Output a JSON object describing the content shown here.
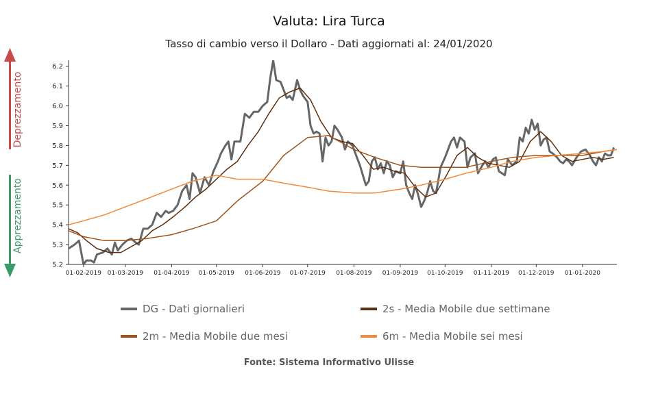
{
  "chart_data": {
    "type": "line",
    "title": "Valuta: Lira Turca",
    "subtitle": "Tasso di cambio verso il Dollaro - Dati aggiornati al: 24/01/2020",
    "source": "Fonte: Sistema Informativo Ulisse",
    "side_labels": {
      "up": "Deprezzamento",
      "down": "Apprezzamento"
    },
    "x_start": "2019-01-22",
    "x_end": "2020-01-24",
    "x_ticks": [
      "01-02-2019",
      "01-03-2019",
      "01-04-2019",
      "01-05-2019",
      "01-06-2019",
      "01-07-2019",
      "01-08-2019",
      "01-09-2019",
      "01-10-2019",
      "01-11-2019",
      "01-12-2019",
      "01-01-2020"
    ],
    "x_tick_dates": [
      "2019-02-01",
      "2019-03-01",
      "2019-04-01",
      "2019-05-01",
      "2019-06-01",
      "2019-07-01",
      "2019-08-01",
      "2019-09-01",
      "2019-10-01",
      "2019-11-01",
      "2019-12-01",
      "2020-01-01"
    ],
    "ylim": [
      5.2,
      6.23
    ],
    "y_ticks": [
      5.2,
      5.3,
      5.4,
      5.5,
      5.6,
      5.7,
      5.8,
      5.9,
      6.0,
      6.1,
      6.2
    ],
    "legend_position": "bottom",
    "series": [
      {
        "key": "dg",
        "name": "DG - Dati giornalieri",
        "color": "#666666",
        "width": 3,
        "points": [
          [
            "2019-01-22",
            5.28
          ],
          [
            "2019-01-26",
            5.3
          ],
          [
            "2019-01-29",
            5.32
          ],
          [
            "2019-02-01",
            5.2
          ],
          [
            "2019-02-03",
            5.22
          ],
          [
            "2019-02-06",
            5.22
          ],
          [
            "2019-02-08",
            5.21
          ],
          [
            "2019-02-10",
            5.25
          ],
          [
            "2019-02-14",
            5.26
          ],
          [
            "2019-02-17",
            5.28
          ],
          [
            "2019-02-20",
            5.25
          ],
          [
            "2019-02-22",
            5.31
          ],
          [
            "2019-02-24",
            5.27
          ],
          [
            "2019-02-27",
            5.3
          ],
          [
            "2019-03-02",
            5.32
          ],
          [
            "2019-03-05",
            5.33
          ],
          [
            "2019-03-08",
            5.31
          ],
          [
            "2019-03-10",
            5.3
          ],
          [
            "2019-03-13",
            5.38
          ],
          [
            "2019-03-16",
            5.38
          ],
          [
            "2019-03-19",
            5.4
          ],
          [
            "2019-03-22",
            5.46
          ],
          [
            "2019-03-25",
            5.44
          ],
          [
            "2019-03-28",
            5.47
          ],
          [
            "2019-03-30",
            5.46
          ],
          [
            "2019-04-02",
            5.47
          ],
          [
            "2019-04-05",
            5.5
          ],
          [
            "2019-04-08",
            5.57
          ],
          [
            "2019-04-11",
            5.6
          ],
          [
            "2019-04-13",
            5.53
          ],
          [
            "2019-04-15",
            5.66
          ],
          [
            "2019-04-17",
            5.64
          ],
          [
            "2019-04-20",
            5.56
          ],
          [
            "2019-04-23",
            5.64
          ],
          [
            "2019-04-26",
            5.6
          ],
          [
            "2019-04-29",
            5.67
          ],
          [
            "2019-05-02",
            5.72
          ],
          [
            "2019-05-04",
            5.76
          ],
          [
            "2019-05-07",
            5.8
          ],
          [
            "2019-05-09",
            5.82
          ],
          [
            "2019-05-11",
            5.73
          ],
          [
            "2019-05-13",
            5.82
          ],
          [
            "2019-05-17",
            5.82
          ],
          [
            "2019-05-20",
            5.96
          ],
          [
            "2019-05-23",
            5.94
          ],
          [
            "2019-05-26",
            5.97
          ],
          [
            "2019-05-29",
            5.97
          ],
          [
            "2019-06-01",
            6.0
          ],
          [
            "2019-06-04",
            6.02
          ],
          [
            "2019-06-06",
            6.14
          ],
          [
            "2019-06-08",
            6.23
          ],
          [
            "2019-06-10",
            6.13
          ],
          [
            "2019-06-13",
            6.12
          ],
          [
            "2019-06-15",
            6.08
          ],
          [
            "2019-06-17",
            6.04
          ],
          [
            "2019-06-19",
            6.05
          ],
          [
            "2019-06-21",
            6.03
          ],
          [
            "2019-06-24",
            6.13
          ],
          [
            "2019-06-26",
            6.08
          ],
          [
            "2019-06-28",
            6.05
          ],
          [
            "2019-07-01",
            6.02
          ],
          [
            "2019-07-03",
            5.9
          ],
          [
            "2019-07-05",
            5.86
          ],
          [
            "2019-07-07",
            5.87
          ],
          [
            "2019-07-09",
            5.86
          ],
          [
            "2019-07-11",
            5.72
          ],
          [
            "2019-07-13",
            5.84
          ],
          [
            "2019-07-15",
            5.8
          ],
          [
            "2019-07-17",
            5.82
          ],
          [
            "2019-07-19",
            5.9
          ],
          [
            "2019-07-21",
            5.88
          ],
          [
            "2019-07-24",
            5.84
          ],
          [
            "2019-07-26",
            5.78
          ],
          [
            "2019-07-28",
            5.82
          ],
          [
            "2019-07-31",
            5.8
          ],
          [
            "2019-08-03",
            5.74
          ],
          [
            "2019-08-05",
            5.7
          ],
          [
            "2019-08-07",
            5.65
          ],
          [
            "2019-08-09",
            5.6
          ],
          [
            "2019-08-11",
            5.62
          ],
          [
            "2019-08-13",
            5.72
          ],
          [
            "2019-08-15",
            5.74
          ],
          [
            "2019-08-17",
            5.68
          ],
          [
            "2019-08-19",
            5.71
          ],
          [
            "2019-08-21",
            5.66
          ],
          [
            "2019-08-23",
            5.72
          ],
          [
            "2019-08-25",
            5.7
          ],
          [
            "2019-08-27",
            5.64
          ],
          [
            "2019-08-29",
            5.67
          ],
          [
            "2019-09-01",
            5.66
          ],
          [
            "2019-09-03",
            5.72
          ],
          [
            "2019-09-05",
            5.6
          ],
          [
            "2019-09-07",
            5.56
          ],
          [
            "2019-09-09",
            5.53
          ],
          [
            "2019-09-11",
            5.6
          ],
          [
            "2019-09-13",
            5.55
          ],
          [
            "2019-09-15",
            5.49
          ],
          [
            "2019-09-17",
            5.52
          ],
          [
            "2019-09-19",
            5.56
          ],
          [
            "2019-09-21",
            5.62
          ],
          [
            "2019-09-23",
            5.57
          ],
          [
            "2019-09-25",
            5.56
          ],
          [
            "2019-09-28",
            5.69
          ],
          [
            "2019-10-01",
            5.74
          ],
          [
            "2019-10-03",
            5.78
          ],
          [
            "2019-10-05",
            5.82
          ],
          [
            "2019-10-07",
            5.84
          ],
          [
            "2019-10-09",
            5.79
          ],
          [
            "2019-10-11",
            5.84
          ],
          [
            "2019-10-14",
            5.82
          ],
          [
            "2019-10-16",
            5.69
          ],
          [
            "2019-10-18",
            5.74
          ],
          [
            "2019-10-21",
            5.76
          ],
          [
            "2019-10-23",
            5.66
          ],
          [
            "2019-10-26",
            5.7
          ],
          [
            "2019-10-28",
            5.72
          ],
          [
            "2019-10-30",
            5.69
          ],
          [
            "2019-11-02",
            5.73
          ],
          [
            "2019-11-04",
            5.74
          ],
          [
            "2019-11-06",
            5.67
          ],
          [
            "2019-11-08",
            5.66
          ],
          [
            "2019-11-10",
            5.65
          ],
          [
            "2019-11-12",
            5.73
          ],
          [
            "2019-11-15",
            5.7
          ],
          [
            "2019-11-18",
            5.72
          ],
          [
            "2019-11-20",
            5.84
          ],
          [
            "2019-11-22",
            5.82
          ],
          [
            "2019-11-24",
            5.89
          ],
          [
            "2019-11-26",
            5.86
          ],
          [
            "2019-11-28",
            5.93
          ],
          [
            "2019-11-30",
            5.88
          ],
          [
            "2019-12-02",
            5.91
          ],
          [
            "2019-12-04",
            5.8
          ],
          [
            "2019-12-06",
            5.83
          ],
          [
            "2019-12-08",
            5.84
          ],
          [
            "2019-12-10",
            5.77
          ],
          [
            "2019-12-12",
            5.76
          ],
          [
            "2019-12-15",
            5.74
          ],
          [
            "2019-12-17",
            5.72
          ],
          [
            "2019-12-19",
            5.71
          ],
          [
            "2019-12-21",
            5.73
          ],
          [
            "2019-12-23",
            5.72
          ],
          [
            "2019-12-25",
            5.7
          ],
          [
            "2019-12-28",
            5.74
          ],
          [
            "2019-12-31",
            5.77
          ],
          [
            "2020-01-03",
            5.78
          ],
          [
            "2020-01-06",
            5.75
          ],
          [
            "2020-01-08",
            5.72
          ],
          [
            "2020-01-10",
            5.7
          ],
          [
            "2020-01-12",
            5.74
          ],
          [
            "2020-01-14",
            5.72
          ],
          [
            "2020-01-16",
            5.76
          ],
          [
            "2020-01-18",
            5.75
          ],
          [
            "2020-01-20",
            5.75
          ],
          [
            "2020-01-22",
            5.79
          ]
        ]
      },
      {
        "key": "ma2s",
        "name": "2s - Media Mobile due settimane",
        "color": "#5c2e0e",
        "width": 1.5,
        "points": [
          [
            "2019-01-22",
            5.38
          ],
          [
            "2019-01-28",
            5.36
          ],
          [
            "2019-02-03",
            5.32
          ],
          [
            "2019-02-10",
            5.28
          ],
          [
            "2019-02-18",
            5.26
          ],
          [
            "2019-02-26",
            5.26
          ],
          [
            "2019-03-05",
            5.29
          ],
          [
            "2019-03-12",
            5.32
          ],
          [
            "2019-03-19",
            5.37
          ],
          [
            "2019-03-26",
            5.4
          ],
          [
            "2019-04-02",
            5.44
          ],
          [
            "2019-04-10",
            5.49
          ],
          [
            "2019-04-17",
            5.54
          ],
          [
            "2019-04-24",
            5.58
          ],
          [
            "2019-05-01",
            5.63
          ],
          [
            "2019-05-08",
            5.68
          ],
          [
            "2019-05-15",
            5.72
          ],
          [
            "2019-05-22",
            5.8
          ],
          [
            "2019-05-29",
            5.87
          ],
          [
            "2019-06-05",
            5.96
          ],
          [
            "2019-06-12",
            6.04
          ],
          [
            "2019-06-19",
            6.07
          ],
          [
            "2019-06-26",
            6.09
          ],
          [
            "2019-07-03",
            6.03
          ],
          [
            "2019-07-10",
            5.92
          ],
          [
            "2019-07-17",
            5.84
          ],
          [
            "2019-07-24",
            5.82
          ],
          [
            "2019-07-31",
            5.81
          ],
          [
            "2019-08-07",
            5.75
          ],
          [
            "2019-08-14",
            5.68
          ],
          [
            "2019-08-21",
            5.69
          ],
          [
            "2019-08-28",
            5.67
          ],
          [
            "2019-09-04",
            5.66
          ],
          [
            "2019-09-11",
            5.59
          ],
          [
            "2019-09-18",
            5.54
          ],
          [
            "2019-09-25",
            5.56
          ],
          [
            "2019-10-02",
            5.65
          ],
          [
            "2019-10-09",
            5.75
          ],
          [
            "2019-10-16",
            5.79
          ],
          [
            "2019-10-23",
            5.74
          ],
          [
            "2019-10-30",
            5.71
          ],
          [
            "2019-11-06",
            5.7
          ],
          [
            "2019-11-13",
            5.69
          ],
          [
            "2019-11-20",
            5.72
          ],
          [
            "2019-11-27",
            5.82
          ],
          [
            "2019-12-04",
            5.87
          ],
          [
            "2019-12-11",
            5.82
          ],
          [
            "2019-12-18",
            5.75
          ],
          [
            "2019-12-25",
            5.72
          ],
          [
            "2020-01-01",
            5.73
          ],
          [
            "2020-01-08",
            5.74
          ],
          [
            "2020-01-15",
            5.73
          ],
          [
            "2020-01-22",
            5.74
          ]
        ]
      },
      {
        "key": "ma2m",
        "name": "2m - Media Mobile due mesi",
        "color": "#a0531b",
        "width": 1.5,
        "points": [
          [
            "2019-01-22",
            5.37
          ],
          [
            "2019-02-01",
            5.34
          ],
          [
            "2019-02-15",
            5.32
          ],
          [
            "2019-03-01",
            5.32
          ],
          [
            "2019-03-15",
            5.33
          ],
          [
            "2019-04-01",
            5.35
          ],
          [
            "2019-04-15",
            5.38
          ],
          [
            "2019-05-01",
            5.42
          ],
          [
            "2019-05-15",
            5.52
          ],
          [
            "2019-06-01",
            5.62
          ],
          [
            "2019-06-15",
            5.75
          ],
          [
            "2019-07-01",
            5.84
          ],
          [
            "2019-07-15",
            5.85
          ],
          [
            "2019-08-01",
            5.78
          ],
          [
            "2019-08-15",
            5.74
          ],
          [
            "2019-09-01",
            5.7
          ],
          [
            "2019-09-15",
            5.69
          ],
          [
            "2019-10-01",
            5.69
          ],
          [
            "2019-10-15",
            5.69
          ],
          [
            "2019-11-01",
            5.72
          ],
          [
            "2019-11-15",
            5.74
          ],
          [
            "2019-12-01",
            5.75
          ],
          [
            "2019-12-15",
            5.75
          ],
          [
            "2020-01-01",
            5.75
          ],
          [
            "2020-01-15",
            5.77
          ],
          [
            "2020-01-24",
            5.78
          ]
        ]
      },
      {
        "key": "ma6m",
        "name": "6m - Media Mobile sei mesi",
        "color": "#f08a3c",
        "width": 1.5,
        "points": [
          [
            "2019-01-22",
            5.4
          ],
          [
            "2019-02-01",
            5.42
          ],
          [
            "2019-02-15",
            5.45
          ],
          [
            "2019-03-01",
            5.49
          ],
          [
            "2019-03-15",
            5.53
          ],
          [
            "2019-04-01",
            5.58
          ],
          [
            "2019-04-15",
            5.62
          ],
          [
            "2019-05-01",
            5.65
          ],
          [
            "2019-05-15",
            5.63
          ],
          [
            "2019-06-01",
            5.63
          ],
          [
            "2019-06-15",
            5.61
          ],
          [
            "2019-07-01",
            5.59
          ],
          [
            "2019-07-15",
            5.57
          ],
          [
            "2019-08-01",
            5.56
          ],
          [
            "2019-08-15",
            5.56
          ],
          [
            "2019-09-01",
            5.58
          ],
          [
            "2019-09-15",
            5.6
          ],
          [
            "2019-10-01",
            5.63
          ],
          [
            "2019-10-15",
            5.66
          ],
          [
            "2019-11-01",
            5.69
          ],
          [
            "2019-11-15",
            5.72
          ],
          [
            "2019-12-01",
            5.74
          ],
          [
            "2019-12-15",
            5.75
          ],
          [
            "2020-01-01",
            5.76
          ],
          [
            "2020-01-15",
            5.77
          ],
          [
            "2020-01-24",
            5.78
          ]
        ]
      }
    ]
  }
}
